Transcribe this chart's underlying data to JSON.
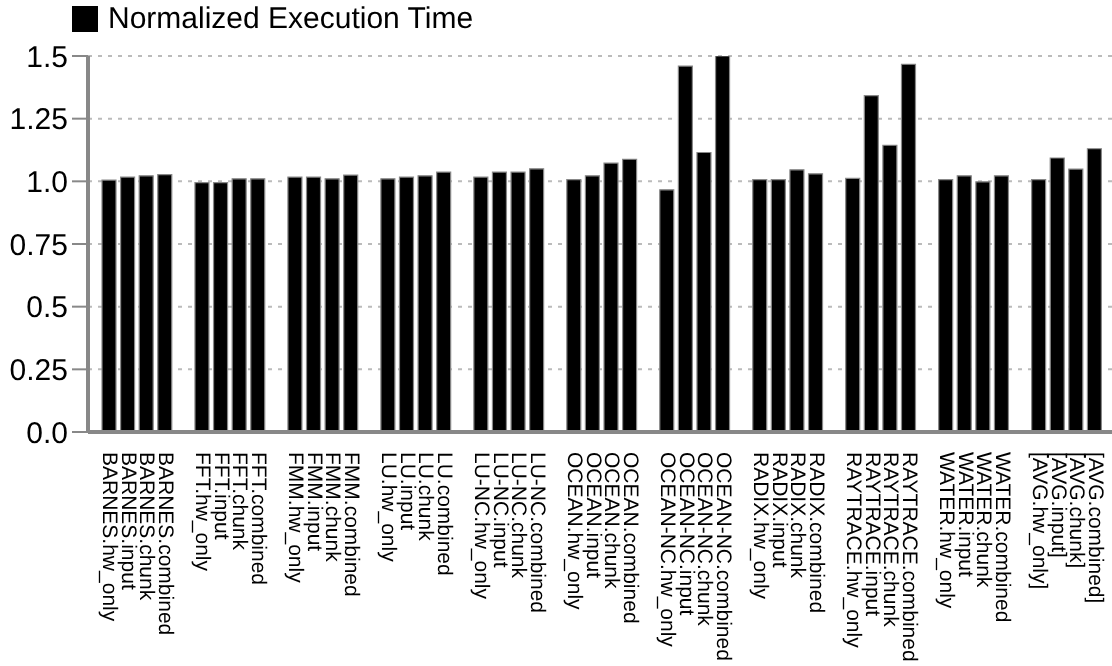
{
  "chart_data": {
    "type": "bar",
    "categories": [
      "BARNES.hw_only",
      "BARNES.input",
      "BARNES.chunk",
      "BARNES.combined",
      null,
      "FFT.hw_only",
      "FFT.input",
      "FFT.chunk",
      "FFT.combined",
      null,
      "FMM.hw_only",
      "FMM.input",
      "FMM.chunk",
      "FMM.combined",
      null,
      "LU.hw_only",
      "LU.input",
      "LU.chunk",
      "LU.combined",
      null,
      "LU-NC.hw_only",
      "LU-NC.input",
      "LU-NC.chunk",
      "LU-NC.combined",
      null,
      "OCEAN.hw_only",
      "OCEAN.input",
      "OCEAN.chunk",
      "OCEAN.combined",
      null,
      "OCEAN-NC.hw_only",
      "OCEAN-NC.input",
      "OCEAN-NC.chunk",
      "OCEAN-NC.combined",
      null,
      "RADIX.hw_only",
      "RADIX.input",
      "RADIX.chunk",
      "RADIX.combined",
      null,
      "RAYTRACE.hw_only",
      "RAYTRACE.input",
      "RAYTRACE.chunk",
      "RAYTRACE.combined",
      null,
      "WATER.hw_only",
      "WATER.input",
      "WATER.chunk",
      "WATER.combined",
      null,
      "[AVG.hw_only]",
      "[AVG.input]",
      "[AVG.chunk]",
      "[AVG.combined]"
    ],
    "series": [
      {
        "name": "Normalized Execution Time",
        "color": "#000000",
        "values": [
          1.005,
          1.017,
          1.022,
          1.027,
          null,
          0.995,
          0.995,
          1.01,
          1.01,
          null,
          1.017,
          1.017,
          1.01,
          1.025,
          null,
          1.01,
          1.017,
          1.022,
          1.037,
          null,
          1.017,
          1.037,
          1.037,
          1.05,
          null,
          1.007,
          1.022,
          1.073,
          1.088,
          null,
          0.966,
          1.46,
          1.115,
          1.5,
          null,
          1.007,
          1.007,
          1.046,
          1.03,
          null,
          1.012,
          1.342,
          1.144,
          1.467,
          null,
          1.007,
          1.022,
          0.998,
          1.022,
          null,
          1.007,
          1.093,
          1.049,
          1.13
        ]
      }
    ],
    "ylim": [
      0,
      1.5
    ],
    "yticks": [
      {
        "value": 0,
        "label": "0.0"
      },
      0.25,
      0.5,
      0.75,
      {
        "value": 1,
        "label": "1.0"
      },
      1.25,
      1.5
    ],
    "grid": "y",
    "legend": "top left"
  }
}
